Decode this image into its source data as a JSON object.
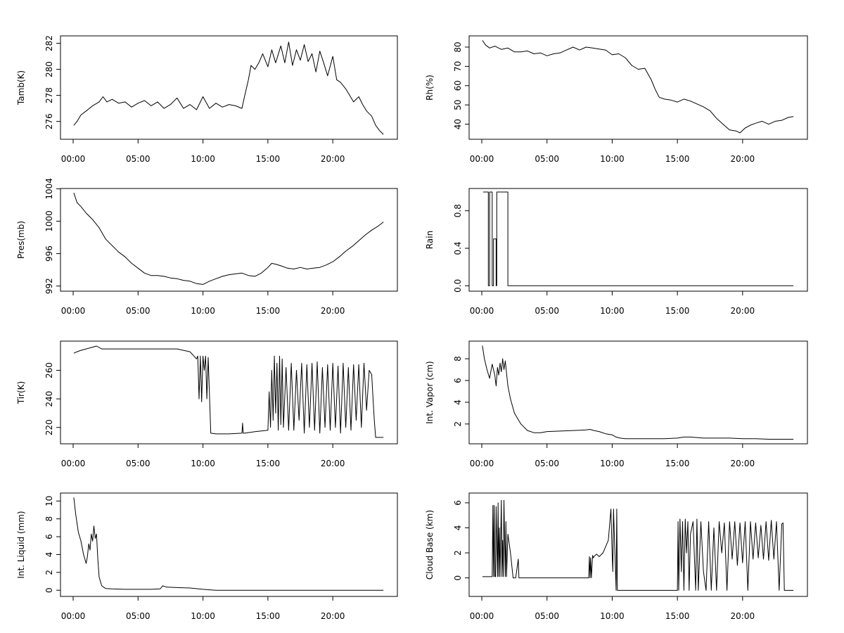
{
  "chart_data": [
    {
      "type": "line",
      "ylabel": "Tamb(K)",
      "xticks": [
        "00:00",
        "05:00",
        "10:00",
        "15:00",
        "20:00"
      ],
      "xlim": [
        0,
        24
      ],
      "ylim": [
        274.9,
        282.3
      ],
      "yticks": [
        276,
        278,
        280,
        282
      ],
      "series": [
        {
          "x": [
            0.05,
            0.3,
            0.6,
            1.0,
            1.5,
            2.0,
            2.3,
            2.6,
            3.0,
            3.5,
            4.0,
            4.5,
            5.0,
            5.5,
            6.0,
            6.5,
            7.0,
            7.5,
            8.0,
            8.5,
            9.0,
            9.5,
            10.0,
            10.5,
            11.0,
            11.5,
            12.0,
            12.5,
            13.0,
            13.2,
            13.5,
            13.7,
            14.0,
            14.3,
            14.6,
            15.0,
            15.3,
            15.6,
            16.0,
            16.3,
            16.6,
            16.9,
            17.2,
            17.5,
            17.8,
            18.1,
            18.4,
            18.7,
            19.0,
            19.3,
            19.6,
            20.0,
            20.3,
            20.6,
            21.0,
            21.3,
            21.6,
            22.0,
            22.3,
            22.6,
            23.0,
            23.3,
            23.6,
            23.9
          ],
          "y": [
            275.7,
            276.0,
            276.5,
            276.8,
            277.2,
            277.5,
            277.9,
            277.5,
            277.7,
            277.4,
            277.5,
            277.1,
            277.4,
            277.6,
            277.2,
            277.5,
            277.0,
            277.3,
            277.8,
            277.0,
            277.3,
            276.9,
            277.9,
            277.0,
            277.4,
            277.1,
            277.3,
            277.2,
            277.0,
            277.9,
            279.2,
            280.3,
            280.0,
            280.5,
            281.2,
            280.2,
            281.5,
            280.5,
            281.8,
            280.5,
            282.1,
            280.3,
            281.5,
            280.7,
            281.9,
            280.6,
            281.2,
            279.8,
            281.4,
            280.5,
            279.5,
            281.0,
            279.2,
            279.0,
            278.5,
            278.0,
            277.5,
            277.9,
            277.3,
            276.8,
            276.4,
            275.7,
            275.3,
            275.0
          ]
        }
      ]
    },
    {
      "type": "line",
      "ylabel": "Rh(%)",
      "xticks": [
        "00:00",
        "05:00",
        "10:00",
        "15:00",
        "20:00"
      ],
      "xlim": [
        0,
        24
      ],
      "ylim": [
        34,
        84
      ],
      "yticks": [
        40,
        50,
        60,
        70,
        80
      ],
      "series": [
        {
          "x": [
            0.05,
            0.3,
            0.6,
            1.0,
            1.5,
            2.0,
            2.5,
            3.0,
            3.5,
            4.0,
            4.5,
            5.0,
            5.5,
            6.0,
            6.5,
            7.0,
            7.5,
            8.0,
            8.5,
            9.0,
            9.5,
            10.0,
            10.5,
            11.0,
            11.5,
            12.0,
            12.5,
            13.0,
            13.3,
            13.6,
            14.0,
            14.5,
            15.0,
            15.5,
            16.0,
            16.5,
            17.0,
            17.5,
            18.0,
            18.5,
            19.0,
            19.5,
            19.8,
            20.2,
            20.6,
            21.0,
            21.5,
            22.0,
            22.5,
            23.0,
            23.5,
            23.9
          ],
          "y": [
            83.5,
            81.0,
            79.5,
            80.5,
            78.8,
            79.5,
            77.5,
            77.5,
            78.0,
            76.5,
            77.0,
            75.5,
            76.5,
            77.0,
            78.5,
            80.0,
            78.5,
            80.0,
            79.5,
            79.0,
            78.5,
            76.0,
            76.5,
            74.5,
            70.5,
            68.5,
            69.0,
            63.0,
            58.0,
            54.0,
            53.0,
            52.5,
            51.5,
            53.0,
            52.0,
            50.5,
            49.0,
            47.0,
            43.0,
            40.0,
            37.0,
            36.5,
            35.5,
            38.0,
            39.5,
            40.5,
            41.5,
            40.0,
            41.5,
            42.0,
            43.5,
            44.0
          ]
        }
      ]
    },
    {
      "type": "line",
      "ylabel": "Pres(mb)",
      "xticks": [
        "00:00",
        "05:00",
        "10:00",
        "15:00",
        "20:00"
      ],
      "xlim": [
        0,
        24
      ],
      "ylim": [
        991.8,
        1003.6
      ],
      "yticks": [
        992,
        996,
        1000,
        1004
      ],
      "series": [
        {
          "x": [
            0.05,
            0.3,
            0.6,
            1.0,
            1.5,
            2.0,
            2.5,
            3.0,
            3.5,
            4.0,
            4.5,
            5.0,
            5.5,
            6.0,
            6.5,
            7.0,
            7.5,
            8.0,
            8.5,
            9.0,
            9.5,
            10.0,
            10.5,
            11.0,
            11.5,
            12.0,
            12.5,
            13.0,
            13.5,
            14.0,
            14.5,
            15.0,
            15.3,
            15.6,
            16.0,
            16.5,
            17.0,
            17.5,
            18.0,
            18.5,
            19.0,
            19.5,
            20.0,
            20.5,
            21.0,
            21.5,
            22.0,
            22.5,
            23.0,
            23.5,
            23.9
          ],
          "y": [
            1003.5,
            1002.3,
            1001.8,
            1001.0,
            1000.2,
            999.2,
            997.8,
            997.0,
            996.2,
            995.6,
            994.8,
            994.2,
            993.6,
            993.3,
            993.3,
            993.2,
            993.0,
            992.9,
            992.7,
            992.6,
            992.3,
            992.2,
            992.6,
            992.9,
            993.2,
            993.4,
            993.5,
            993.6,
            993.3,
            993.2,
            993.6,
            994.3,
            994.8,
            994.7,
            994.5,
            994.2,
            994.1,
            994.3,
            994.1,
            994.2,
            994.3,
            994.6,
            995.0,
            995.6,
            996.3,
            996.9,
            997.6,
            998.3,
            998.9,
            999.4,
            999.9
          ]
        }
      ]
    },
    {
      "type": "line",
      "ylabel": "Rain",
      "xticks": [
        "00:00",
        "05:00",
        "10:00",
        "15:00",
        "20:00"
      ],
      "xlim": [
        0,
        24
      ],
      "ylim": [
        -0.02,
        1.0
      ],
      "yticks": [
        0.0,
        0.4,
        0.8
      ],
      "ytick_labels": [
        "0.0",
        "0.4",
        "0.8"
      ],
      "series": [
        {
          "x": [
            0.1,
            0.5,
            0.5,
            0.6,
            0.6,
            0.8,
            0.8,
            0.9,
            0.9,
            1.1,
            1.1,
            1.15,
            1.15,
            2.0,
            2.0,
            2.1,
            2.1,
            23.9
          ],
          "y": [
            1,
            1,
            0,
            0,
            1,
            1,
            0,
            0,
            0.5,
            0.5,
            0,
            0,
            1,
            1,
            0,
            0,
            0,
            0
          ]
        }
      ]
    },
    {
      "type": "line",
      "ylabel": "Tir(K)",
      "xticks": [
        "00:00",
        "05:00",
        "10:00",
        "15:00",
        "20:00"
      ],
      "xlim": [
        0,
        24
      ],
      "ylim": [
        211,
        278
      ],
      "yticks": [
        220,
        240,
        260
      ],
      "series": [
        {
          "x": [
            0.05,
            0.3,
            0.6,
            1.0,
            1.4,
            1.8,
            2.2,
            3.0,
            4.0,
            5.0,
            6.0,
            7.0,
            8.0,
            8.5,
            9.0,
            9.3,
            9.5,
            9.6,
            9.7,
            9.8,
            9.9,
            10.0,
            10.1,
            10.2,
            10.3,
            10.4,
            10.6,
            11.0,
            12.0,
            13.0,
            13.05,
            13.1,
            13.2,
            14.0,
            15.0,
            15.1,
            15.2,
            15.3,
            15.4,
            15.5,
            15.6,
            15.7,
            15.8,
            15.9,
            16.0,
            16.1,
            16.2,
            16.4,
            16.6,
            16.8,
            17.0,
            17.2,
            17.4,
            17.6,
            17.8,
            18.0,
            18.2,
            18.4,
            18.6,
            18.8,
            19.0,
            19.2,
            19.4,
            19.6,
            19.8,
            20.0,
            20.2,
            20.4,
            20.6,
            20.8,
            21.0,
            21.2,
            21.4,
            21.6,
            21.8,
            22.0,
            22.2,
            22.4,
            22.6,
            22.8,
            23.0,
            23.1,
            23.2,
            23.3,
            23.5,
            23.9
          ],
          "y": [
            272,
            273,
            274,
            275,
            276,
            277,
            275,
            275,
            275,
            275,
            275,
            275,
            275,
            274,
            273,
            270,
            268,
            270,
            240,
            270,
            238,
            270,
            260,
            270,
            240,
            269,
            216,
            215.5,
            215.5,
            216,
            223,
            216,
            216,
            217,
            218,
            245,
            220,
            260,
            225,
            270,
            230,
            265,
            218,
            270,
            222,
            268,
            220,
            262,
            218,
            265,
            218,
            260,
            225,
            265,
            216,
            264,
            220,
            265,
            218,
            266,
            216,
            262,
            220,
            264,
            218,
            265,
            220,
            263,
            216,
            265,
            220,
            262,
            218,
            264,
            225,
            264,
            220,
            265,
            232,
            260,
            257,
            240,
            225,
            213,
            213,
            213
          ]
        }
      ]
    },
    {
      "type": "line",
      "ylabel": "Int. Vapor (cm)",
      "xticks": [
        "00:00",
        "05:00",
        "10:00",
        "15:00",
        "20:00"
      ],
      "xlim": [
        0,
        24
      ],
      "ylim": [
        0.5,
        9.3
      ],
      "yticks": [
        2,
        4,
        6,
        8
      ],
      "series": [
        {
          "x": [
            0.05,
            0.2,
            0.4,
            0.6,
            0.8,
            1.0,
            1.1,
            1.2,
            1.3,
            1.4,
            1.5,
            1.6,
            1.7,
            1.8,
            2.0,
            2.2,
            2.5,
            3.0,
            3.5,
            4.0,
            4.5,
            5.0,
            6.0,
            7.0,
            8.0,
            8.3,
            8.6,
            9.0,
            9.5,
            10.0,
            10.3,
            10.6,
            11.0,
            12.0,
            13.0,
            14.0,
            15.0,
            15.5,
            16.0,
            16.5,
            17.0,
            18.0,
            19.0,
            20.0,
            21.0,
            22.0,
            23.0,
            23.9
          ],
          "y": [
            9.2,
            8.0,
            7.0,
            6.2,
            7.5,
            6.5,
            5.5,
            7.2,
            6.5,
            7.6,
            6.8,
            8.0,
            7.0,
            7.8,
            5.5,
            4.3,
            3.0,
            2.0,
            1.4,
            1.2,
            1.2,
            1.3,
            1.35,
            1.4,
            1.45,
            1.5,
            1.4,
            1.3,
            1.1,
            1.0,
            0.8,
            0.7,
            0.65,
            0.65,
            0.65,
            0.65,
            0.7,
            0.8,
            0.8,
            0.75,
            0.7,
            0.7,
            0.7,
            0.65,
            0.65,
            0.6,
            0.6,
            0.6
          ]
        }
      ]
    },
    {
      "type": "line",
      "ylabel": "Int. Liquid (mm)",
      "xticks": [
        "00:00",
        "05:00",
        "10:00",
        "15:00",
        "20:00"
      ],
      "xlim": [
        0,
        24
      ],
      "ylim": [
        -0.3,
        10.5
      ],
      "yticks": [
        0,
        2,
        4,
        6,
        8,
        10
      ],
      "series": [
        {
          "x": [
            0.05,
            0.2,
            0.4,
            0.6,
            0.8,
            1.0,
            1.1,
            1.2,
            1.3,
            1.4,
            1.5,
            1.6,
            1.7,
            1.8,
            1.9,
            2.0,
            2.2,
            2.5,
            3.0,
            4.0,
            5.0,
            6.0,
            6.7,
            6.9,
            7.2,
            8.0,
            9.0,
            10.0,
            10.5,
            11.0,
            12.0,
            15.0,
            20.0,
            23.9
          ],
          "y": [
            10.4,
            8.5,
            6.5,
            5.5,
            4.0,
            3.0,
            3.8,
            5.2,
            4.5,
            6.3,
            5.5,
            7.2,
            5.8,
            6.3,
            3.5,
            1.5,
            0.5,
            0.2,
            0.15,
            0.1,
            0.1,
            0.1,
            0.15,
            0.5,
            0.35,
            0.3,
            0.25,
            0.1,
            0.05,
            0.0,
            0.0,
            0.0,
            0.0,
            0.0
          ]
        }
      ]
    },
    {
      "type": "line",
      "ylabel": "Cloud Base (km)",
      "xticks": [
        "00:00",
        "05:00",
        "10:00",
        "15:00",
        "20:00"
      ],
      "xlim": [
        0,
        24
      ],
      "ylim": [
        -1.2,
        6.5
      ],
      "yticks": [
        0,
        2,
        4,
        6
      ],
      "series": [
        {
          "x": [
            0.05,
            0.8,
            0.85,
            0.9,
            0.95,
            1.0,
            1.05,
            1.1,
            1.2,
            1.25,
            1.3,
            1.35,
            1.4,
            1.5,
            1.55,
            1.6,
            1.65,
            1.7,
            1.8,
            1.85,
            1.9,
            2.0,
            2.2,
            2.4,
            2.5,
            2.6,
            2.8,
            2.85,
            2.9,
            3.0,
            5.0,
            7.0,
            8.2,
            8.25,
            8.3,
            8.35,
            8.4,
            8.5,
            8.55,
            8.6,
            8.8,
            9.0,
            9.3,
            9.5,
            9.7,
            9.9,
            10.0,
            10.05,
            10.1,
            10.3,
            10.35,
            10.4,
            10.5,
            10.6,
            12.0,
            14.0,
            15.0,
            15.05,
            15.1,
            15.2,
            15.3,
            15.4,
            15.5,
            15.6,
            15.7,
            15.8,
            15.9,
            16.0,
            16.2,
            16.4,
            16.5,
            16.6,
            16.8,
            17.0,
            17.2,
            17.4,
            17.6,
            17.8,
            18.0,
            18.2,
            18.4,
            18.6,
            18.8,
            19.0,
            19.2,
            19.4,
            19.6,
            19.8,
            20.0,
            20.2,
            20.4,
            20.6,
            20.8,
            21.0,
            21.2,
            21.4,
            21.6,
            21.8,
            22.0,
            22.2,
            22.4,
            22.6,
            22.8,
            23.0,
            23.1,
            23.2,
            23.3,
            23.9
          ],
          "y": [
            0.1,
            0.1,
            5.8,
            0.1,
            5.8,
            0.1,
            0.1,
            5.7,
            0.1,
            6.0,
            0.1,
            4.0,
            0.1,
            6.2,
            0.1,
            3.0,
            0.1,
            6.2,
            0.1,
            4.5,
            0.1,
            3.5,
            2.0,
            0.0,
            0.0,
            0.0,
            1.5,
            0.0,
            0.0,
            0.0,
            0.0,
            0.0,
            0.0,
            1.7,
            0.0,
            1.6,
            0.0,
            1.8,
            1.6,
            1.7,
            1.9,
            1.7,
            2.0,
            2.5,
            3.0,
            5.5,
            1.8,
            0.5,
            5.5,
            -1.0,
            5.5,
            -1.0,
            -1.0,
            -1.0,
            -1.0,
            -1.0,
            -1.0,
            4.5,
            -1.0,
            4.7,
            0.5,
            4.5,
            -1.0,
            4.7,
            2.0,
            4.5,
            -1.0,
            3.5,
            4.5,
            -1.0,
            4.7,
            -1.0,
            4.5,
            0.5,
            -1.0,
            4.5,
            -1.0,
            4.0,
            -1.0,
            4.5,
            2.0,
            4.4,
            -1.0,
            4.5,
            1.5,
            4.5,
            1.0,
            4.4,
            1.2,
            4.5,
            -1.0,
            4.5,
            1.5,
            4.4,
            1.6,
            4.2,
            1.5,
            4.5,
            1.4,
            4.6,
            1.5,
            4.5,
            -1.0,
            4.3,
            4.4,
            -1.0,
            -1.0,
            -1.0
          ]
        }
      ]
    }
  ]
}
